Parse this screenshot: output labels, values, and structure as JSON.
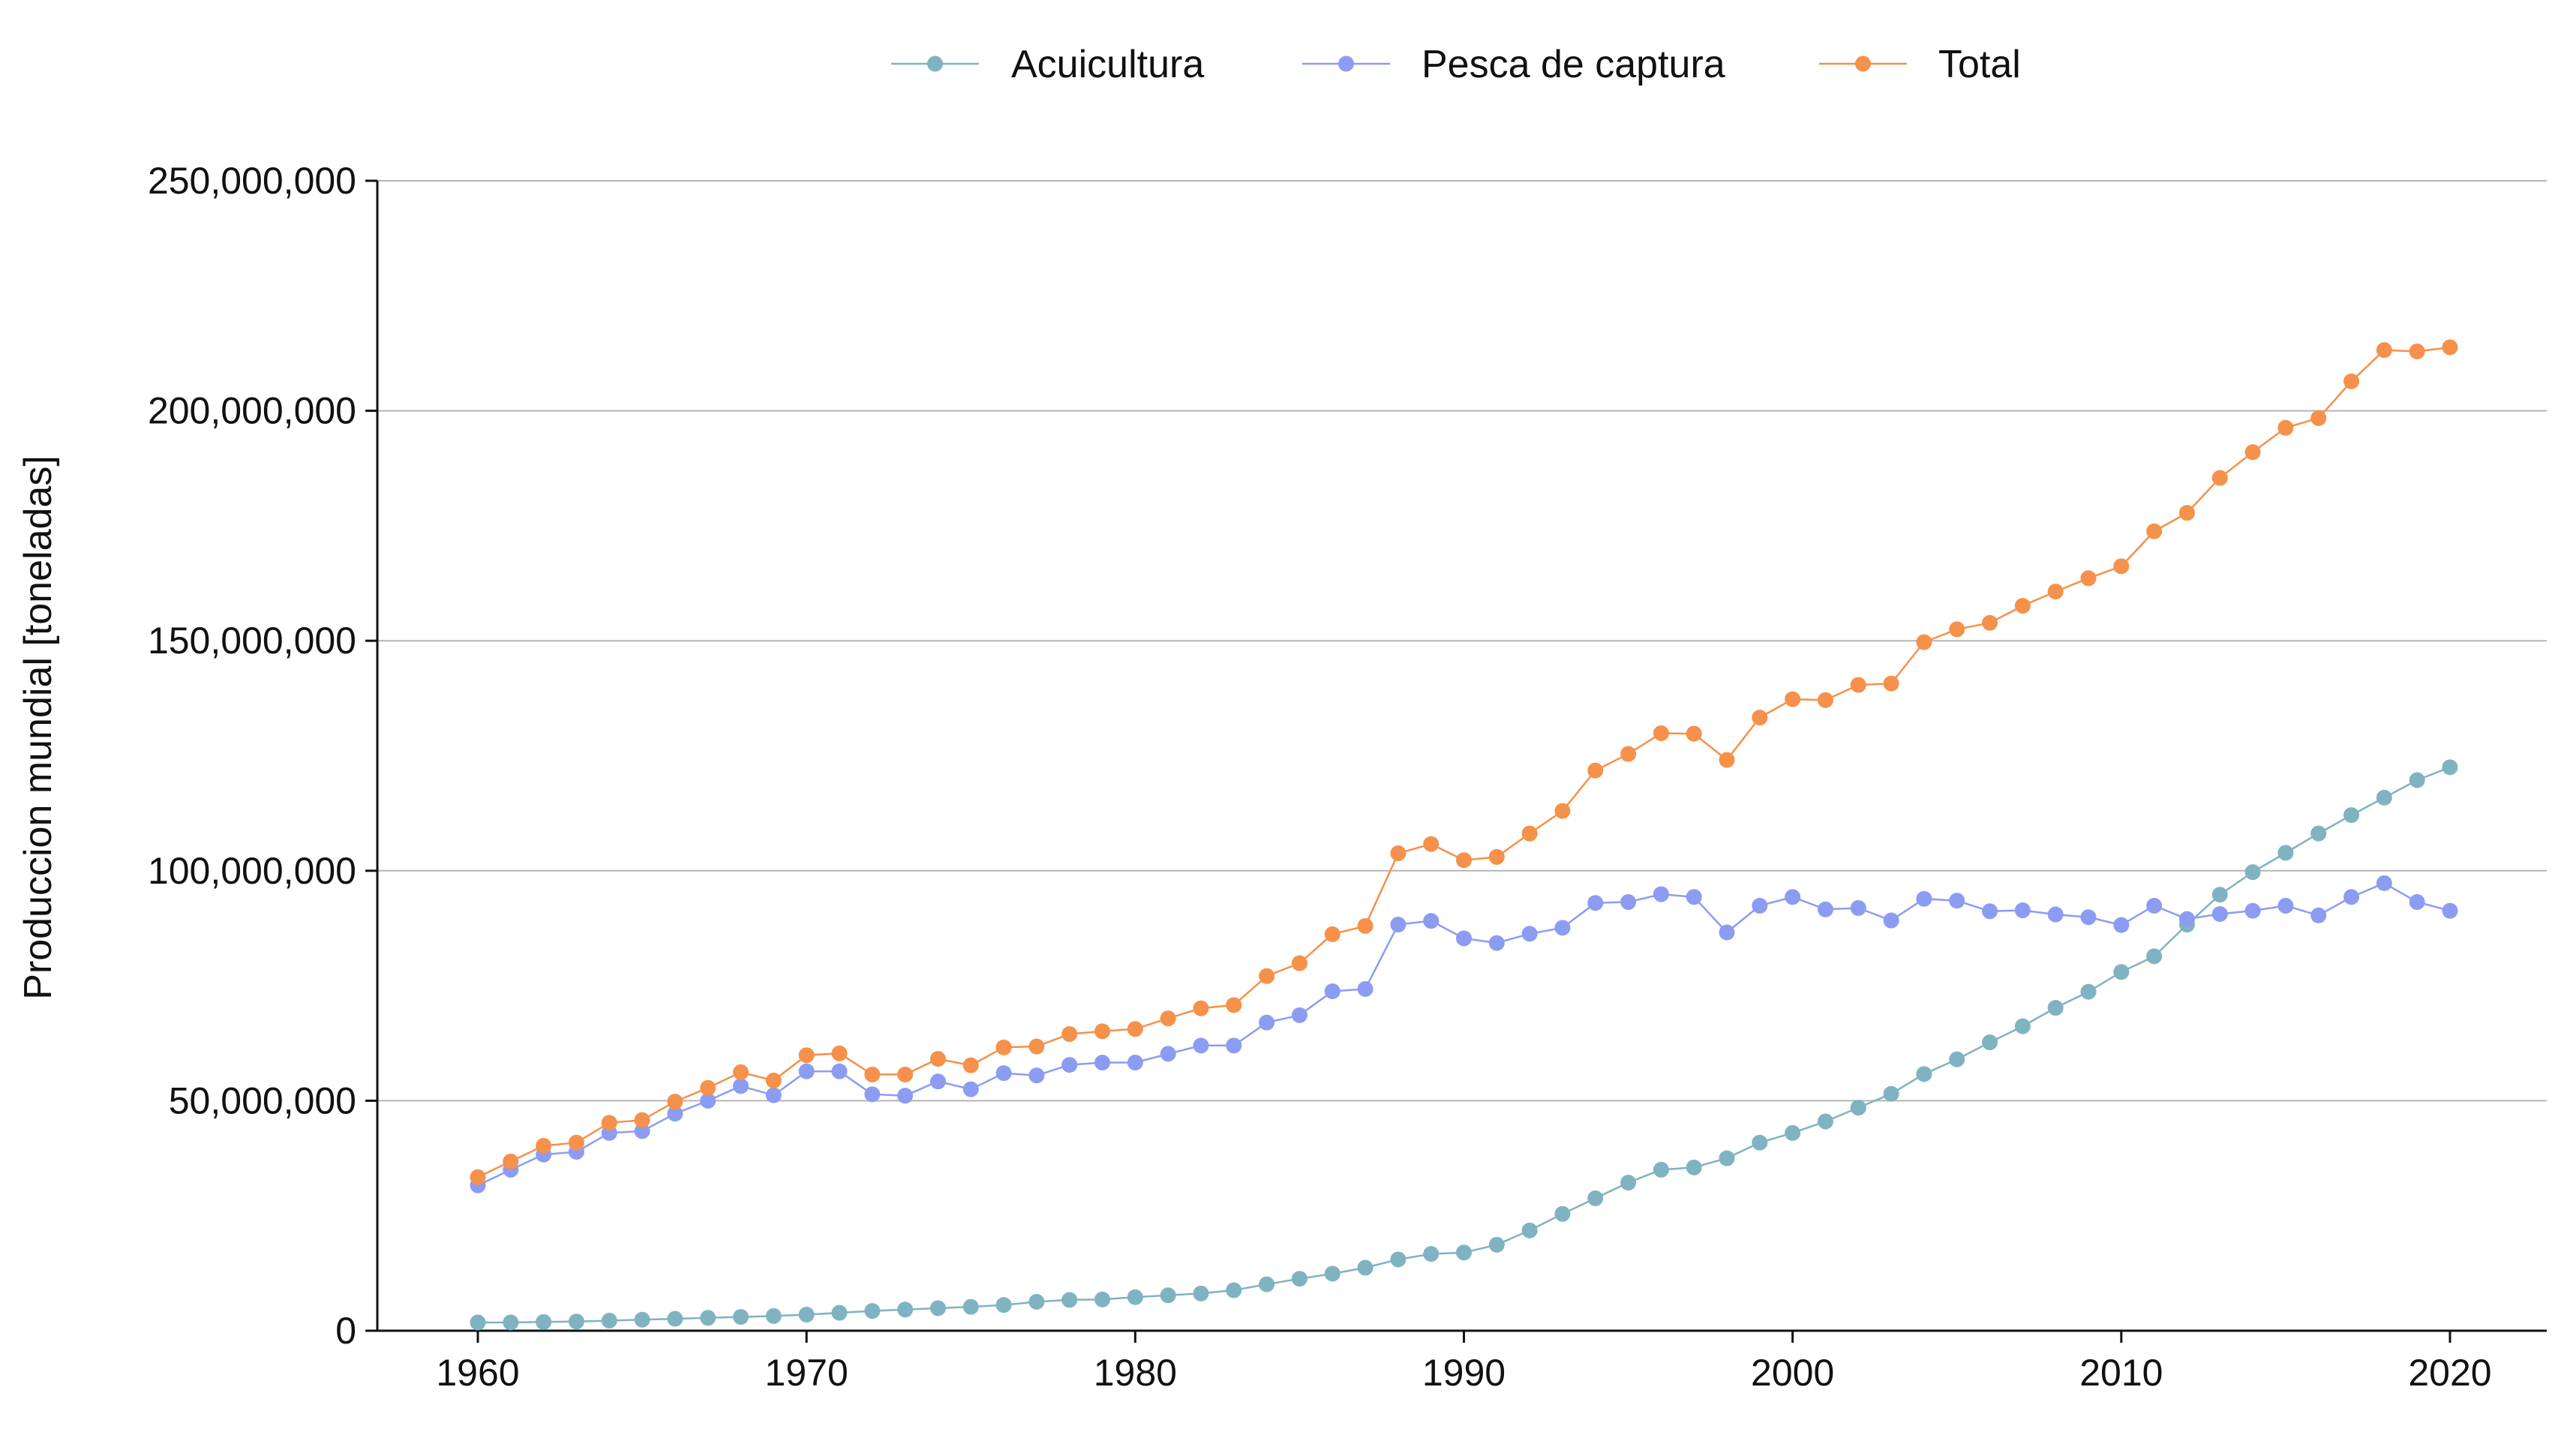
{
  "chart_data": {
    "type": "line",
    "title": "",
    "xlabel": "",
    "ylabel": "Produccion mundial [toneladas]",
    "xlim": [
      1957,
      2023
    ],
    "ylim": [
      0,
      250000000
    ],
    "x_ticks": [
      1960,
      1970,
      1980,
      1990,
      2000,
      2010,
      2020
    ],
    "x_tick_labels": [
      "1960",
      "1970",
      "1980",
      "1990",
      "2000",
      "2010",
      "2020"
    ],
    "y_ticks": [
      0,
      50000000,
      100000000,
      150000000,
      200000000,
      250000000
    ],
    "y_tick_labels": [
      "0",
      "50,000,000",
      "100,000,000",
      "150,000,000",
      "200,000,000",
      "250,000,000"
    ],
    "grid": "horizontal",
    "legend_position": "top-center",
    "x": [
      1960,
      1961,
      1962,
      1963,
      1964,
      1965,
      1966,
      1967,
      1968,
      1969,
      1970,
      1971,
      1972,
      1973,
      1974,
      1975,
      1976,
      1977,
      1978,
      1979,
      1980,
      1981,
      1982,
      1983,
      1984,
      1985,
      1986,
      1987,
      1988,
      1989,
      1990,
      1991,
      1992,
      1993,
      1994,
      1995,
      1996,
      1997,
      1998,
      1999,
      2000,
      2001,
      2002,
      2003,
      2004,
      2005,
      2006,
      2007,
      2008,
      2009,
      2010,
      2011,
      2012,
      2013,
      2014,
      2015,
      2016,
      2017,
      2018,
      2019,
      2020
    ],
    "series": [
      {
        "name": "Acuicultura",
        "color": "#7fb3c2",
        "values": [
          1800000,
          1800000,
          1900000,
          2000000,
          2200000,
          2400000,
          2600000,
          2800000,
          3000000,
          3200000,
          3500000,
          3900000,
          4300000,
          4600000,
          4900000,
          5200000,
          5600000,
          6300000,
          6700000,
          6800000,
          7300000,
          7700000,
          8100000,
          8800000,
          10100000,
          11300000,
          12400000,
          13700000,
          15500000,
          16700000,
          17000000,
          18700000,
          21800000,
          25400000,
          28800000,
          32200000,
          35000000,
          35500000,
          37500000,
          40900000,
          43000000,
          45500000,
          48500000,
          51500000,
          55800000,
          59000000,
          62700000,
          66200000,
          70200000,
          73700000,
          78000000,
          81400000,
          88300000,
          94800000,
          99700000,
          103900000,
          108100000,
          112100000,
          115900000,
          119700000,
          122500000
        ]
      },
      {
        "name": "Pesca de captura",
        "color": "#8c9cf2",
        "values": [
          31600000,
          35000000,
          38300000,
          38900000,
          43000000,
          43400000,
          47200000,
          50000000,
          53200000,
          51200000,
          56400000,
          56400000,
          51400000,
          51100000,
          54200000,
          52500000,
          56000000,
          55500000,
          57800000,
          58300000,
          58300000,
          60200000,
          62000000,
          62000000,
          67000000,
          68600000,
          73800000,
          74300000,
          88300000,
          89100000,
          85300000,
          84300000,
          86300000,
          87600000,
          93000000,
          93200000,
          94900000,
          94300000,
          86600000,
          92400000,
          94300000,
          91600000,
          91900000,
          89200000,
          93900000,
          93500000,
          91200000,
          91400000,
          90500000,
          89900000,
          88200000,
          92400000,
          89500000,
          90600000,
          91300000,
          92400000,
          90300000,
          94300000,
          97300000,
          93200000,
          91300000
        ]
      },
      {
        "name": "Total",
        "color": "#f5914b",
        "values": [
          33400000,
          36800000,
          40200000,
          40900000,
          45200000,
          45800000,
          49800000,
          52800000,
          56200000,
          54400000,
          59900000,
          60300000,
          55700000,
          55700000,
          59100000,
          57700000,
          61600000,
          61800000,
          64500000,
          65100000,
          65600000,
          67900000,
          70100000,
          70800000,
          77100000,
          79900000,
          86200000,
          88000000,
          103800000,
          105800000,
          102300000,
          103000000,
          108100000,
          113000000,
          121800000,
          125400000,
          129900000,
          129800000,
          124100000,
          133300000,
          137300000,
          137100000,
          140400000,
          140700000,
          149700000,
          152500000,
          153900000,
          157600000,
          160700000,
          163600000,
          166200000,
          173800000,
          177800000,
          185400000,
          191000000,
          196300000,
          198400000,
          206400000,
          213200000,
          212900000,
          213800000
        ]
      }
    ]
  }
}
